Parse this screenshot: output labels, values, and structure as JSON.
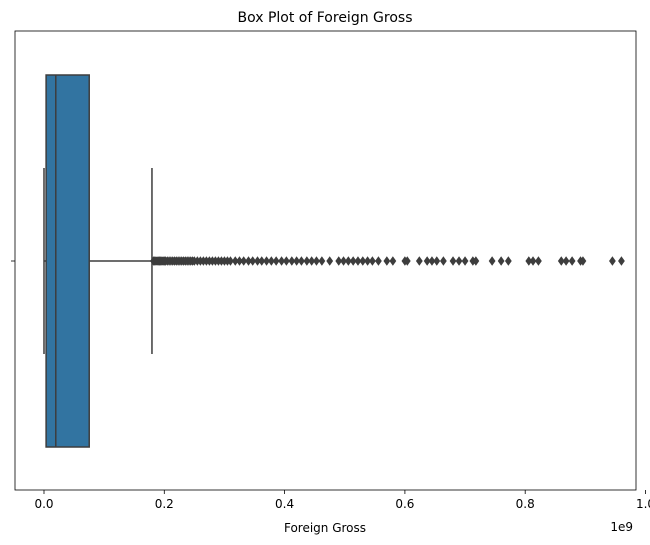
{
  "chart_data": {
    "type": "box",
    "title": "Box Plot of Foreign Gross",
    "xlabel": "Foreign Gross",
    "ylabel": "",
    "x_offset_text": "1e9",
    "x_scale_factor": 1000000000,
    "xlim": [
      -0.0482,
      0.9842
    ],
    "x_ticks": [
      0.0,
      0.2,
      0.4,
      0.6,
      0.8,
      1.0
    ],
    "x_tick_labels": [
      "0.0",
      "0.2",
      "0.4",
      "0.6",
      "0.8",
      "1.0"
    ],
    "orientation": "horizontal",
    "grid": false,
    "box": {
      "whisker_low": 0.0,
      "q1": 0.0035,
      "median": 0.0196,
      "q3": 0.0752,
      "whisker_high": 0.1795,
      "color": "#3274a1",
      "line_color": "#3d3d3d"
    },
    "outliers": [
      0.182,
      0.184,
      0.186,
      0.188,
      0.19,
      0.192,
      0.194,
      0.196,
      0.198,
      0.2,
      0.202,
      0.205,
      0.208,
      0.211,
      0.214,
      0.217,
      0.22,
      0.223,
      0.226,
      0.229,
      0.232,
      0.235,
      0.238,
      0.241,
      0.244,
      0.247,
      0.25,
      0.255,
      0.26,
      0.265,
      0.27,
      0.275,
      0.28,
      0.285,
      0.29,
      0.295,
      0.3,
      0.305,
      0.31,
      0.318,
      0.325,
      0.332,
      0.34,
      0.347,
      0.355,
      0.362,
      0.37,
      0.378,
      0.386,
      0.395,
      0.403,
      0.412,
      0.42,
      0.428,
      0.437,
      0.445,
      0.453,
      0.462,
      0.475,
      0.49,
      0.498,
      0.506,
      0.514,
      0.522,
      0.53,
      0.538,
      0.546,
      0.556,
      0.57,
      0.58,
      0.6,
      0.604,
      0.624,
      0.637,
      0.645,
      0.653,
      0.664,
      0.68,
      0.69,
      0.7,
      0.713,
      0.718,
      0.745,
      0.76,
      0.772,
      0.806,
      0.813,
      0.822,
      0.86,
      0.868,
      0.878,
      0.892,
      0.896,
      0.945,
      0.96
    ],
    "outlier_color": "#3d3d3d"
  }
}
